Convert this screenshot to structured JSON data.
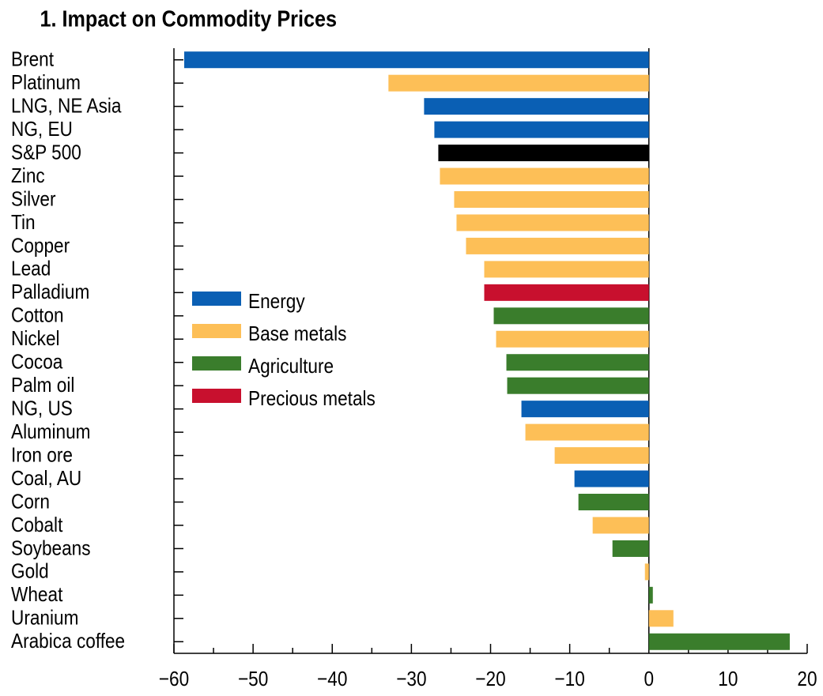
{
  "chart_data": {
    "type": "bar",
    "orientation": "horizontal",
    "title": "1. Impact on Commodity Prices",
    "categories": [
      "Brent",
      "Platinum",
      "LNG, NE Asia",
      "NG, EU",
      "S&P 500",
      "Zinc",
      "Silver",
      "Tin",
      "Copper",
      "Lead",
      "Palladium",
      "Cotton",
      "Nickel",
      "Cocoa",
      "Palm oil",
      "NG, US",
      "Aluminum",
      "Iron ore",
      "Coal, AU",
      "Corn",
      "Cobalt",
      "Soybeans",
      "Gold",
      "Wheat",
      "Uranium",
      "Arabica coffee"
    ],
    "values": [
      -58.7,
      -32.9,
      -28.4,
      -27.1,
      -26.6,
      -26.4,
      -24.6,
      -24.3,
      -23.1,
      -20.8,
      -20.8,
      -19.6,
      -19.3,
      -18.0,
      -17.9,
      -16.1,
      -15.6,
      -11.9,
      -9.4,
      -8.9,
      -7.1,
      -4.6,
      -0.5,
      0.5,
      3.1,
      17.8
    ],
    "colors": [
      "#0a5fb4",
      "#fdbf57",
      "#0a5fb4",
      "#0a5fb4",
      "#000000",
      "#fdbf57",
      "#fdbf57",
      "#fdbf57",
      "#fdbf57",
      "#fdbf57",
      "#c8102e",
      "#3a7d2c",
      "#fdbf57",
      "#3a7d2c",
      "#3a7d2c",
      "#0a5fb4",
      "#fdbf57",
      "#fdbf57",
      "#0a5fb4",
      "#3a7d2c",
      "#fdbf57",
      "#3a7d2c",
      "#fdbf57",
      "#3a7d2c",
      "#fdbf57",
      "#3a7d2c"
    ],
    "legend": [
      {
        "name": "Energy",
        "color": "#0a5fb4"
      },
      {
        "name": "Base metals",
        "color": "#fdbf57"
      },
      {
        "name": "Agriculture",
        "color": "#3a7d2c"
      },
      {
        "name": "Precious metals",
        "color": "#c8102e"
      }
    ],
    "xlim": [
      -60,
      20
    ],
    "xticks": [
      {
        "value": -60,
        "label": "−60"
      },
      {
        "value": -50,
        "label": "−50"
      },
      {
        "value": -40,
        "label": "−40"
      },
      {
        "value": -30,
        "label": "−30"
      },
      {
        "value": -20,
        "label": "−20"
      },
      {
        "value": -10,
        "label": "−10"
      },
      0,
      10,
      20
    ]
  }
}
